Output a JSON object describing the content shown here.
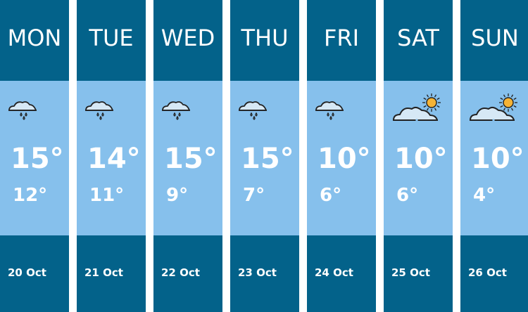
{
  "colors": {
    "header": "#03628a",
    "body": "#86c0ec",
    "sun": "#f5b335",
    "cloud": "#d6e8f5"
  },
  "days": [
    {
      "day": "MON",
      "high": "15°",
      "low": "12°",
      "date": "20 Oct",
      "icon": "rain-cloud-icon"
    },
    {
      "day": "TUE",
      "high": "14°",
      "low": "11°",
      "date": "21 Oct",
      "icon": "rain-cloud-icon"
    },
    {
      "day": "WED",
      "high": "15°",
      "low": "9°",
      "date": "22 Oct",
      "icon": "rain-cloud-icon"
    },
    {
      "day": "THU",
      "high": "15°",
      "low": "7°",
      "date": "23 Oct",
      "icon": "rain-cloud-icon"
    },
    {
      "day": "FRI",
      "high": "10°",
      "low": "6°",
      "date": "24 Oct",
      "icon": "rain-cloud-icon"
    },
    {
      "day": "SAT",
      "high": "10°",
      "low": "6°",
      "date": "25 Oct",
      "icon": "partly-sunny-icon"
    },
    {
      "day": "SUN",
      "high": "10°",
      "low": "4°",
      "date": "26 Oct",
      "icon": "partly-sunny-icon"
    }
  ]
}
